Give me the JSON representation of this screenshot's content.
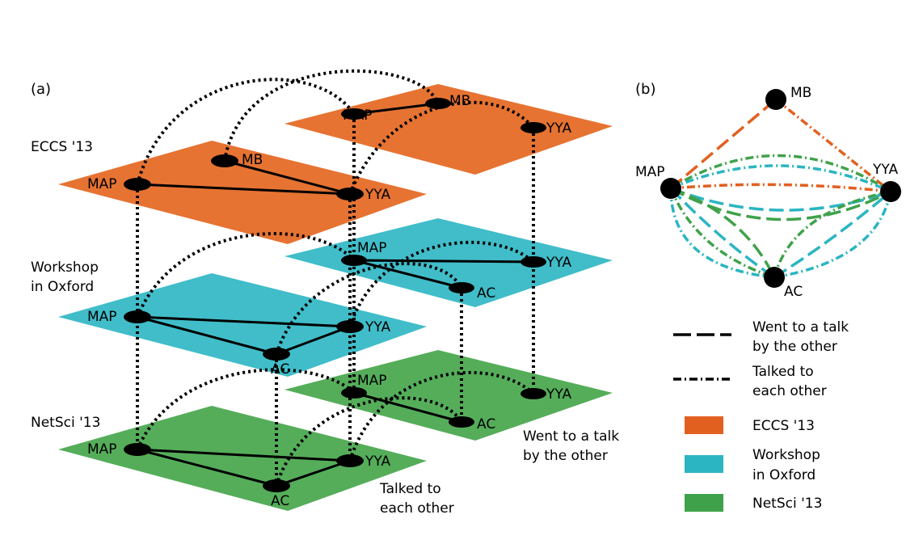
{
  "panel_a_label": "(a)",
  "panel_b_label": "(b)",
  "layer_labels": {
    "eccs": "ECCS '13",
    "workshop_line1": "Workshop",
    "workshop_line2": "in Oxford",
    "netsci": "NetSci '13"
  },
  "node_labels": {
    "map": "MAP",
    "mb": "MB",
    "yya": "YYA",
    "ac": "AC"
  },
  "annotations": {
    "went_line1": "Went to a talk",
    "went_line2": "by the other",
    "talked_line1": "Talked to",
    "talked_line2": "each other"
  },
  "legend": {
    "went_line1": "Went to a talk",
    "went_line2": "by the other",
    "talked_line1": "Talked to",
    "talked_line2": "each other",
    "eccs": "ECCS '13",
    "workshop_line1": "Workshop",
    "workshop_line2": "in Oxford",
    "netsci": "NetSci '13"
  },
  "colors": {
    "eccs": "#e67332",
    "workshop": "#40bdc9",
    "netsci": "#55ad5a",
    "eccs_legend": "#e2601f",
    "workshop_legend": "#2bb5c2",
    "netsci_legend": "#3fa24a"
  }
}
